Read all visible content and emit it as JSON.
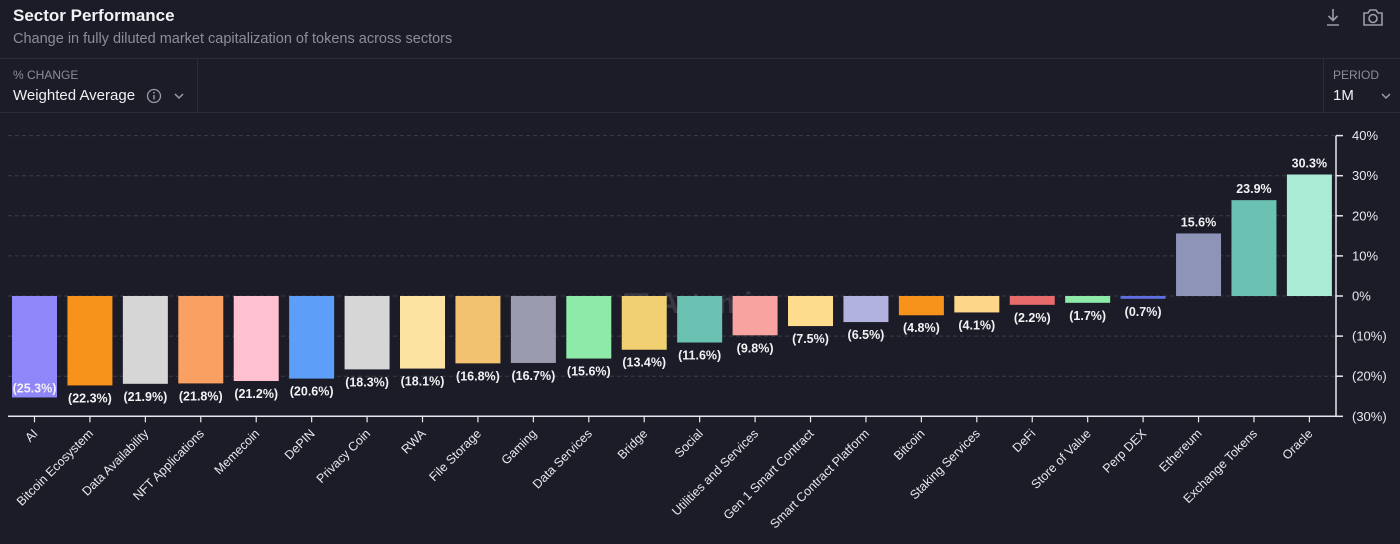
{
  "header": {
    "title": "Sector Performance",
    "subtitle": "Change in fully diluted market capitalization of tokens across sectors",
    "download_icon": "download-icon",
    "screenshot_icon": "camera-icon"
  },
  "controls": {
    "metric_label": "% CHANGE",
    "metric_value": "Weighted Average",
    "period_label": "PERIOD",
    "period_value": "1M"
  },
  "watermark": "Artemis",
  "chart_data": {
    "type": "bar",
    "title": "",
    "xlabel": "",
    "ylabel": "",
    "ylim": [
      -30,
      40
    ],
    "yticks": [
      "40%",
      "30%",
      "20%",
      "10%",
      "0%",
      "(10%)",
      "(20%)",
      "(30%)"
    ],
    "ytick_values": [
      40,
      30,
      20,
      10,
      0,
      -10,
      -20,
      -30
    ],
    "grid": true,
    "y_axis_position": "right",
    "categories": [
      "AI",
      "Bitcoin Ecosystem",
      "Data Availability",
      "NFT Applications",
      "Memecoin",
      "DePIN",
      "Privacy Coin",
      "RWA",
      "File Storage",
      "Gaming",
      "Data Services",
      "Bridge",
      "Social",
      "Utilities and Services",
      "Gen 1 Smart Contract",
      "Smart Contract Platform",
      "Bitcoin",
      "Staking Services",
      "DeFi",
      "Store of Value",
      "Perp DEX",
      "Ethereum",
      "Exchange Tokens",
      "Oracle"
    ],
    "values": [
      -25.3,
      -22.3,
      -21.9,
      -21.8,
      -21.2,
      -20.6,
      -18.3,
      -18.1,
      -16.8,
      -16.7,
      -15.6,
      -13.4,
      -11.6,
      -9.8,
      -7.5,
      -6.5,
      -4.8,
      -4.1,
      -2.2,
      -1.7,
      -0.7,
      15.6,
      23.9,
      30.3
    ],
    "labels": [
      "(25.3%)",
      "(22.3%)",
      "(21.9%)",
      "(21.8%)",
      "(21.2%)",
      "(20.6%)",
      "(18.3%)",
      "(18.1%)",
      "(16.8%)",
      "(16.7%)",
      "(15.6%)",
      "(13.4%)",
      "(11.6%)",
      "(9.8%)",
      "(7.5%)",
      "(6.5%)",
      "(4.8%)",
      "(4.1%)",
      "(2.2%)",
      "(1.7%)",
      "(0.7%)",
      "15.6%",
      "23.9%",
      "30.3%"
    ],
    "colors": [
      "#8f86f9",
      "#f7931a",
      "#d6d6d6",
      "#f9a062",
      "#ffc0d0",
      "#5d9ff8",
      "#d6d6d6",
      "#fde3a2",
      "#f2c270",
      "#9b9bb0",
      "#8eeaa8",
      "#f0d070",
      "#6cc2b2",
      "#f9a3a0",
      "#fddc8e",
      "#b2b2de",
      "#f7931a",
      "#fdd68a",
      "#e86b6b",
      "#8eeaa8",
      "#5f6fe0",
      "#8e94b8",
      "#6cc2b2",
      "#a9ebd5"
    ]
  }
}
